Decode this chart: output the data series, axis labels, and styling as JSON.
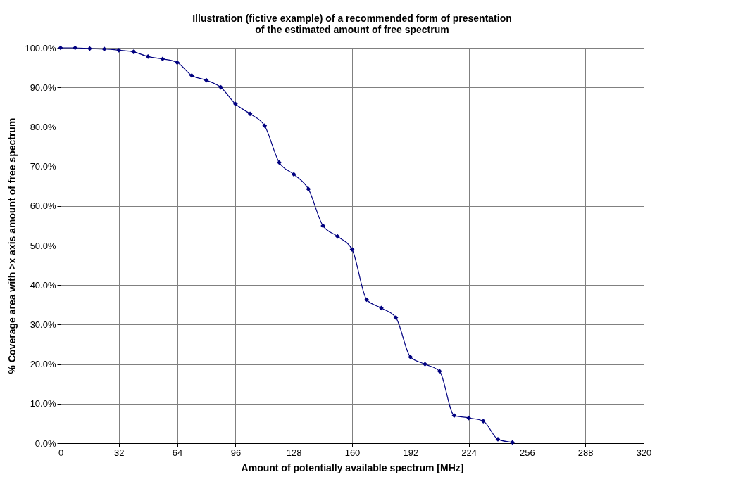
{
  "chart_data": {
    "type": "line",
    "title": "Illustration (fictive example) of a recommended form of presentation\nof the estimated amount of free spectrum",
    "xlabel": "Amount of potentially available spectrum [MHz]",
    "ylabel": "% Coverage area with >x axis amount of free spectrum",
    "x": [
      0,
      8,
      16,
      24,
      32,
      40,
      48,
      56,
      64,
      72,
      80,
      88,
      96,
      104,
      112,
      120,
      128,
      136,
      144,
      152,
      160,
      168,
      176,
      184,
      192,
      200,
      208,
      216,
      224,
      232,
      240,
      248
    ],
    "series": [
      {
        "color": "#000080",
        "values": [
          100,
          100,
          99.8,
          99.7,
          99.4,
          99.0,
          97.8,
          97.2,
          96.3,
          93.0,
          91.8,
          90.0,
          85.8,
          83.3,
          80.3,
          71.0,
          68.0,
          64.3,
          55.0,
          52.3,
          49.0,
          36.3,
          34.2,
          31.8,
          21.8,
          20.0,
          18.2,
          7.0,
          6.4,
          5.6,
          1.0,
          0.2
        ]
      }
    ],
    "xlim": [
      0,
      320
    ],
    "xticks": [
      0,
      32,
      64,
      96,
      128,
      160,
      192,
      224,
      256,
      288,
      320
    ],
    "ylim": [
      0,
      100
    ],
    "yticks": [
      {
        "value": 0,
        "label": "0.0%"
      },
      {
        "value": 10,
        "label": "10.0%"
      },
      {
        "value": 20,
        "label": "20.0%"
      },
      {
        "value": 30,
        "label": "30.0%"
      },
      {
        "value": 40,
        "label": "40.0%"
      },
      {
        "value": 50,
        "label": "50.0%"
      },
      {
        "value": 60,
        "label": "60.0%"
      },
      {
        "value": 70,
        "label": "70.0%"
      },
      {
        "value": 80,
        "label": "80.0%"
      },
      {
        "value": 90,
        "label": "90.0%"
      },
      {
        "value": 100,
        "label": "100.0%"
      }
    ],
    "grid": true,
    "marker": "diamond",
    "line_style": "solid"
  }
}
